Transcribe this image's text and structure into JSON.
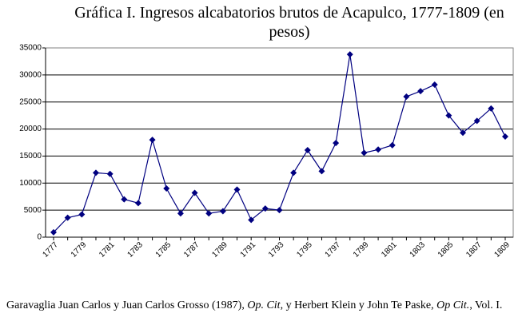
{
  "chart_data": {
    "type": "line",
    "title": "Gráfica I. Ingresos alcabatorios brutos de Acapulco, 1777-1809 (en pesos)",
    "categories": [
      "1777",
      null,
      "1779",
      null,
      "1781",
      null,
      "1783",
      null,
      "1785",
      null,
      "1787",
      null,
      "1789",
      null,
      "1791",
      null,
      "1793",
      null,
      "1795",
      null,
      "1797",
      null,
      "1799",
      null,
      "1801",
      null,
      "1803",
      null,
      "1805",
      null,
      "1807",
      null,
      "1809"
    ],
    "series": [
      {
        "color": "#000080",
        "values": [
          900,
          3600,
          4200,
          11900,
          11700,
          7000,
          6300,
          18000,
          9000,
          4400,
          8200,
          4400,
          4800,
          8800,
          3200,
          5300,
          5000,
          11900,
          16100,
          12200,
          17400,
          33800,
          15600,
          16200,
          17000,
          26000,
          27000,
          28200,
          22500,
          19300,
          21500,
          23800,
          18600
        ]
      }
    ],
    "ylim": [
      0,
      35000
    ],
    "yticks": [
      0,
      5000,
      10000,
      15000,
      20000,
      25000,
      30000,
      35000
    ],
    "grid": true
  },
  "source": [
    "Garavaglia Juan Carlos y Juan Carlos Grosso (1987), ",
    "Op. Cit",
    ", y Herbert Klein y John Te Paske, ",
    "Op Cit.",
    ", Vol. I."
  ]
}
